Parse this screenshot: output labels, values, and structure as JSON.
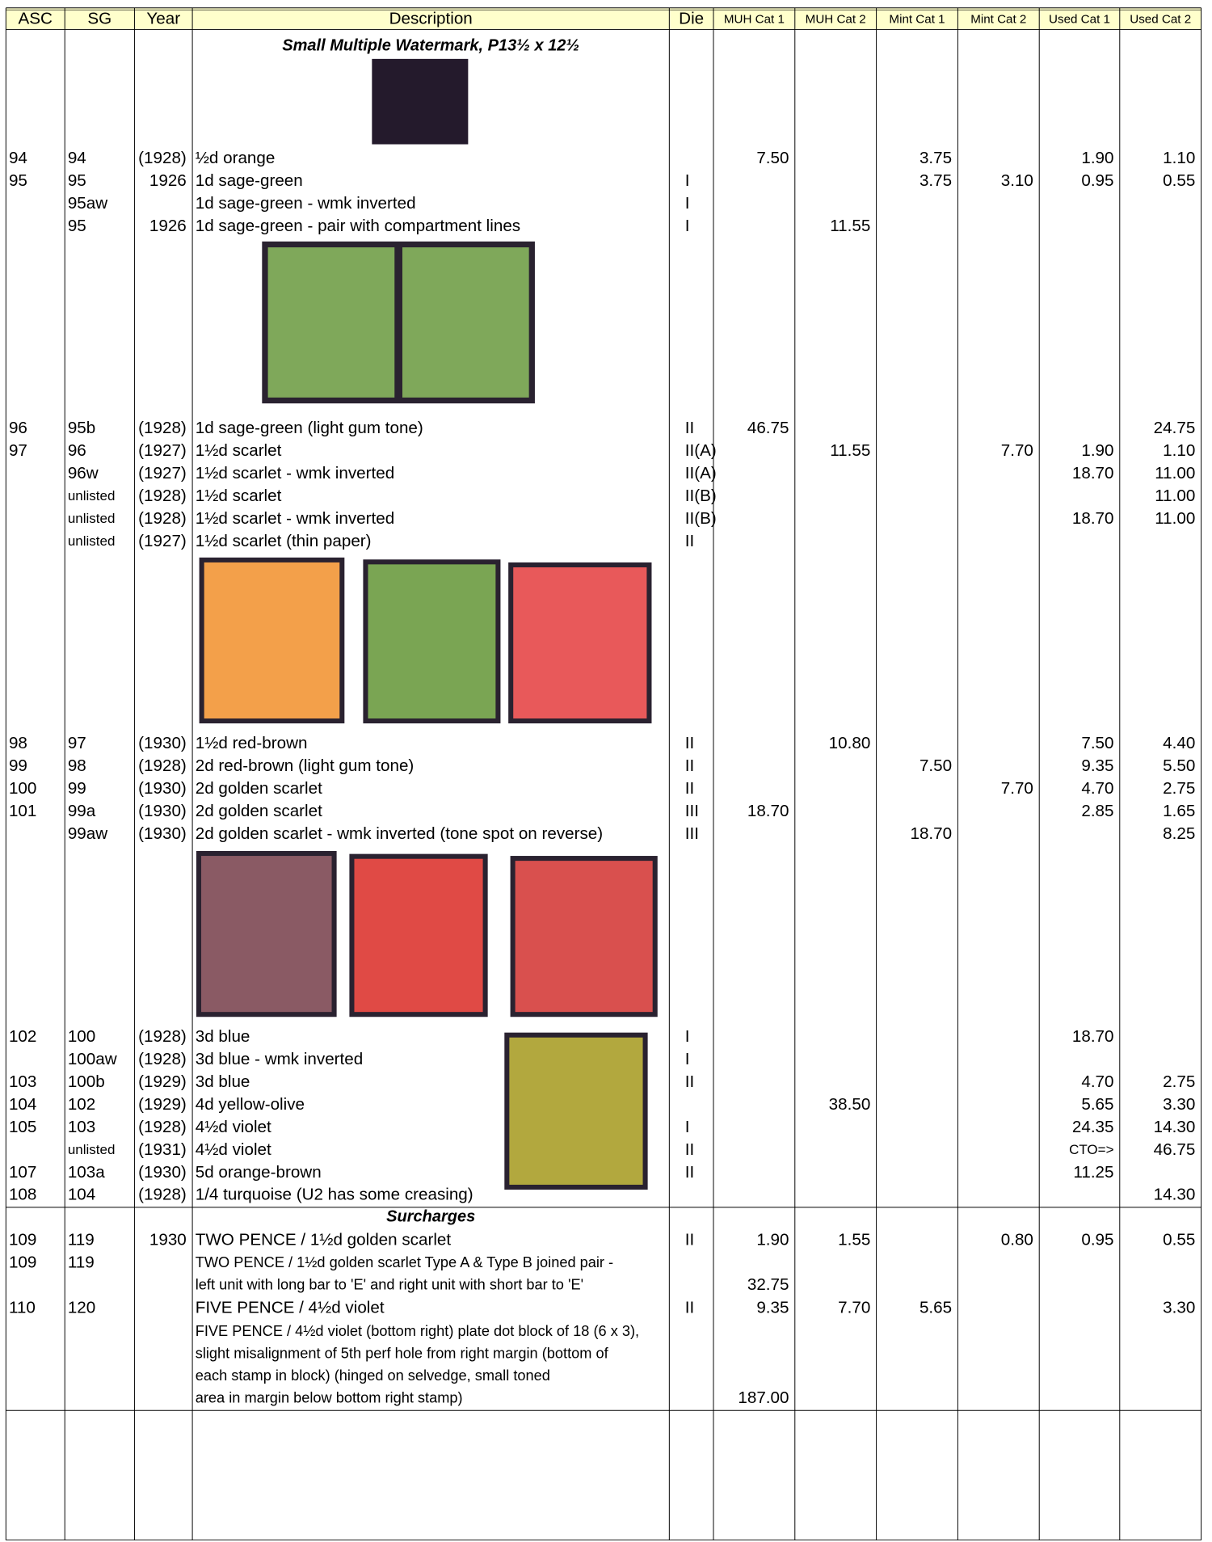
{
  "header": [
    "ASC",
    "SG",
    "Year",
    "Description",
    "Die",
    "MUH Cat 1",
    "MUH Cat 2",
    "Mint Cat 1",
    "Mint Cat 2",
    "Used Cat 1",
    "Used Cat 2"
  ],
  "rows": [
    {
      "title": "Small Multiple Watermark, P13½ x 12½"
    },
    {
      "color": "#1a9be0",
      "asc": "94",
      "sg": "94",
      "year": "(1928)",
      "desc": "½d orange",
      "muh1": "7.50",
      "mint1": "3.75",
      "used1": "1.90",
      "used2": "1.10"
    },
    {
      "asc": "95",
      "sg": "95",
      "year": "1926",
      "desc": "1d sage-green",
      "die": "I",
      "mint1": "3.75",
      "mint2": "3.10",
      "used1": "0.95",
      "used2": "0.55"
    },
    {
      "sg": "95aw",
      "desc": "1d sage-green - wmk inverted",
      "die": "I"
    },
    {
      "color": "#1a9be0",
      "sg": "95",
      "year": "1926",
      "desc": "1d sage-green - pair with compartment lines",
      "die": "I",
      "muh2": "11.55"
    },
    {
      "color": "#1a9be0",
      "asc": "96",
      "sg": "95b",
      "year": "(1928)",
      "desc": "1d sage-green (light gum tone)",
      "die": "II",
      "muh1": "46.75",
      "used2": "24.75"
    },
    {
      "color": "#1a9be0",
      "asc": "97",
      "sg": "96",
      "year": "(1927)",
      "desc": "1½d scarlet",
      "die": "II(A)",
      "muh2": "11.55",
      "mint2": "7.70",
      "used1": "1.90",
      "used2": "1.10"
    },
    {
      "sg": "96w",
      "year": "(1927)",
      "desc": "1½d scarlet - wmk inverted",
      "die": "II(A)",
      "used1": "18.70",
      "used2": "11.00"
    },
    {
      "small": [
        "sg"
      ],
      "sg": "unlisted",
      "year": "(1928)",
      "desc": "1½d scarlet",
      "die": "II(B)",
      "used2": "11.00"
    },
    {
      "small": [
        "sg"
      ],
      "sg": "unlisted",
      "year": "(1928)",
      "desc": "1½d scarlet - wmk inverted",
      "die": "II(B)",
      "used1": "18.70",
      "used2": "11.00"
    },
    {
      "small": [
        "sg"
      ],
      "sg": "unlisted",
      "year": "(1927)",
      "desc": "1½d scarlet (thin paper)",
      "die": "II"
    },
    {
      "asc": "98",
      "sg": "97",
      "year": "(1930)",
      "desc": "1½d red-brown",
      "die": "II",
      "muh2": "10.80",
      "used1": "7.50",
      "used2": "4.40"
    },
    {
      "color": "#1a9be0",
      "asc": "99",
      "sg": "98",
      "year": "(1928)",
      "desc": "2d red-brown (light gum tone)",
      "die": "II",
      "mint1": "7.50",
      "used1": "9.35",
      "used2": "5.50"
    },
    {
      "asc": "100",
      "sg": "99",
      "year": "(1930)",
      "desc": "2d golden scarlet",
      "die": "II",
      "mint2": "7.70",
      "used1": "4.70",
      "used2": "2.75"
    },
    {
      "color": "#1a9be0",
      "asc": "101",
      "sg": "99a",
      "year": "(1930)",
      "desc": "2d golden scarlet",
      "die": "III",
      "muh1": "18.70",
      "used1": "2.85",
      "used2": "1.65"
    },
    {
      "color": "#1a9be0",
      "sg": "99aw",
      "year": "(1930)",
      "desc": "2d golden scarlet - wmk inverted (tone spot on reverse)",
      "die": "III",
      "mint1": "18.70",
      "used2": "8.25"
    },
    {
      "asc": "102",
      "sg": "100",
      "year": "(1928)",
      "desc": "3d blue",
      "die": "I",
      "used1": "18.70"
    },
    {
      "sg": "100aw",
      "year": "(1928)",
      "desc": "3d blue - wmk inverted",
      "die": "I"
    },
    {
      "asc": "103",
      "sg": "100b",
      "year": "(1929)",
      "desc": "3d blue",
      "die": "II",
      "used1": "4.70",
      "used2": "2.75"
    },
    {
      "color": "#1a9be0",
      "asc": "104",
      "sg": "102",
      "year": "(1929)",
      "desc": "4d yellow-olive",
      "muh2": "38.50",
      "used1": "5.65",
      "used2": "3.30"
    },
    {
      "asc": "105",
      "sg": "103",
      "year": "(1928)",
      "desc": "4½d violet",
      "die": "I",
      "used1": "24.35",
      "used2": "14.30"
    },
    {
      "small": [
        "sg",
        "used1"
      ],
      "sg": "unlisted",
      "year": "(1931)",
      "desc": "4½d violet",
      "die": "II",
      "used1": "CTO=>",
      "used2": "46.75"
    },
    {
      "asc": "107",
      "sg": "103a",
      "year": "(1930)",
      "desc": "5d orange-brown",
      "die": "II",
      "used1": "11.25"
    },
    {
      "asc": "108",
      "sg": "104",
      "year": "(1928)",
      "desc": "1/4 turquoise (U2 has some creasing)",
      "used2": "14.30"
    },
    {
      "title": "Surcharges"
    },
    {
      "asc": "109",
      "sg": "119",
      "year": "1930",
      "desc": "TWO PENCE / 1½d golden scarlet",
      "die": "II",
      "muh1": "1.90",
      "muh2": "1.55",
      "mint2": "0.80",
      "used1": "0.95",
      "used2": "0.55"
    },
    {
      "asc": "109",
      "sg": "119",
      "lines": [
        "TWO PENCE / 1½d golden scarlet Type A & Type B joined pair -",
        "left unit with long bar to 'E' and right unit with short bar to 'E'"
      ],
      "muh1": "32.75"
    },
    {
      "asc": "110",
      "sg": "120",
      "desc": "FIVE PENCE / 4½d violet",
      "die": "II",
      "muh1": "9.35",
      "muh2": "7.70",
      "mint1": "5.65",
      "used2": "3.30"
    },
    {
      "lines": [
        "FIVE PENCE / 4½d violet (bottom right) plate dot block of 18 (6 x 3),",
        "slight misalignment of 5th perf hole from right margin (bottom of",
        "each stamp in block) (hinged on selvedge, small toned",
        "area in margin below bottom right stamp)"
      ],
      "muh1": "187.00"
    }
  ]
}
